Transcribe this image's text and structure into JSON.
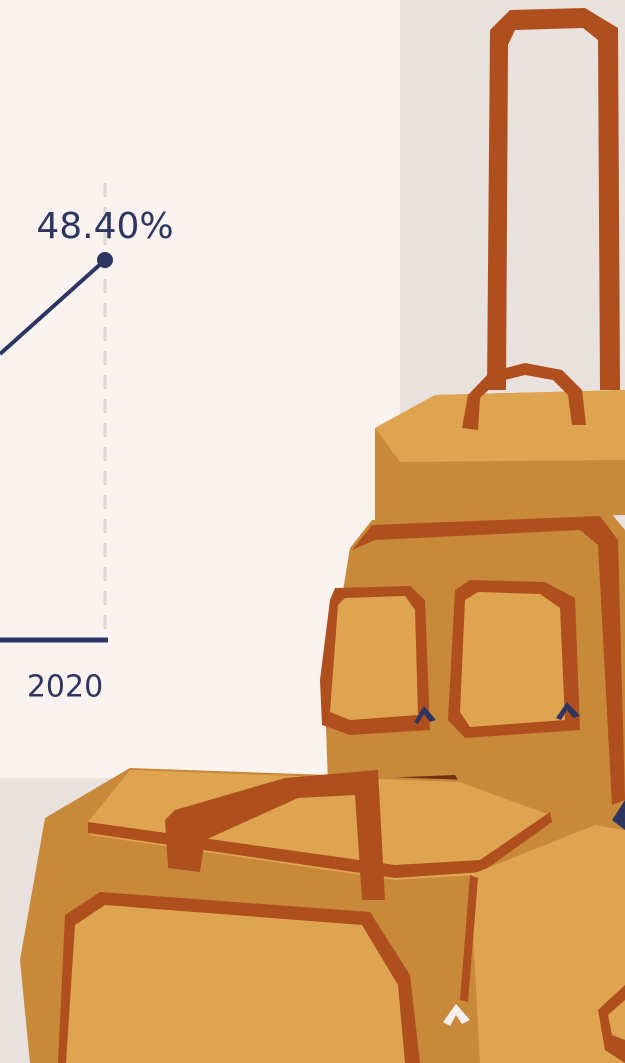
{
  "chart_data": {
    "type": "line",
    "categories": [
      "2020"
    ],
    "values": [
      48.4
    ],
    "value_labels": [
      "48.40%"
    ],
    "color": "#2d3561"
  }
}
